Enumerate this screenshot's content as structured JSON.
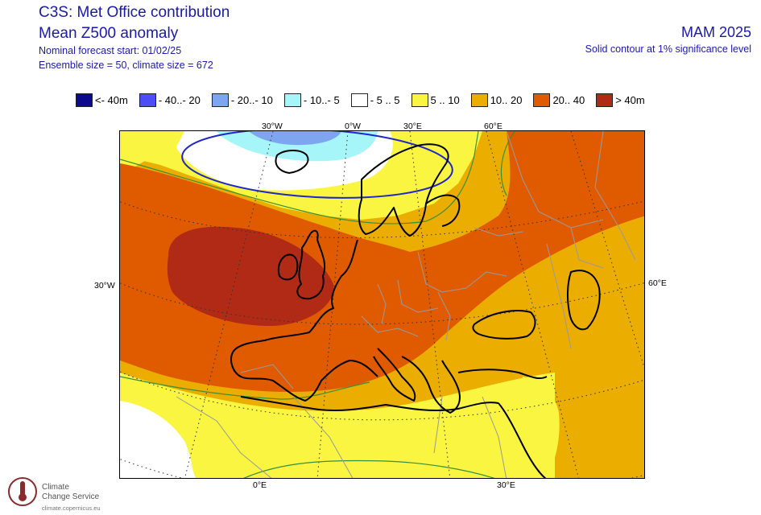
{
  "header": {
    "title_line1": "C3S: Met Office contribution",
    "title_line2": "Mean Z500 anomaly",
    "forecast_start": "Nominal forecast start: 01/02/25",
    "ensemble_info": "Ensemble size = 50, climate size = 672",
    "season": "MAM 2025",
    "significance": "Solid contour at 1% significance level"
  },
  "legend": [
    {
      "label": "<- 40m",
      "color": "#0b0a8c"
    },
    {
      "label": "- 40..- 20",
      "color": "#4d4df5"
    },
    {
      "label": "- 20..- 10",
      "color": "#7ea6f0"
    },
    {
      "label": "- 10..- 5",
      "color": "#a6f5f8"
    },
    {
      "label": "- 5 .. 5",
      "color": "#ffffff"
    },
    {
      "label": "5 .. 10",
      "color": "#f9f540"
    },
    {
      "label": "10.. 20",
      "color": "#eaad00"
    },
    {
      "label": "20.. 40",
      "color": "#e05b00"
    },
    {
      "label": "> 40m",
      "color": "#b12a16"
    }
  ],
  "lat_lon_labels": {
    "top": [
      "30°W",
      "0°W",
      "30°E",
      "60°E"
    ],
    "left": "30°W",
    "right": "60°E",
    "bottom": [
      "0°E",
      "30°E"
    ]
  },
  "logo": {
    "name_line1": "Climate",
    "name_line2": "Change Service",
    "url": "climate.copernicus.eu"
  }
}
